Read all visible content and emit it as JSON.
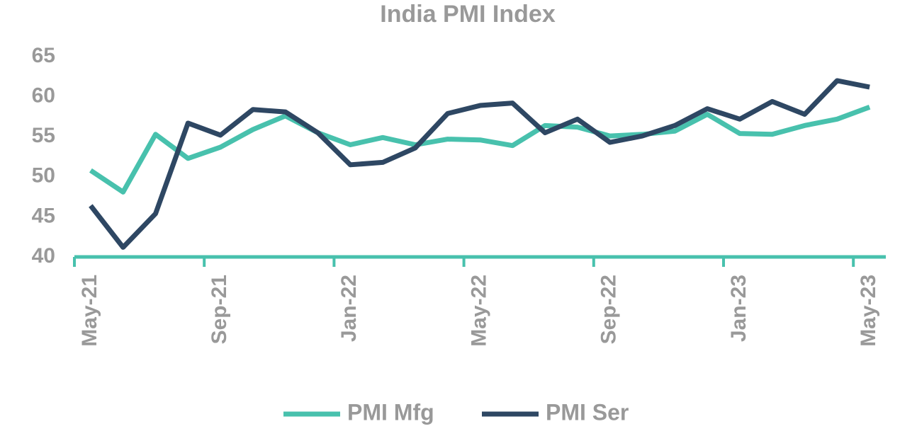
{
  "chart_data": {
    "type": "line",
    "title": "India PMI Index",
    "categories": [
      "May-21",
      null,
      null,
      null,
      "Sep-21",
      null,
      null,
      null,
      "Jan-22",
      null,
      null,
      null,
      "May-22",
      null,
      null,
      null,
      "Sep-22",
      null,
      null,
      null,
      "Jan-23",
      null,
      null,
      null,
      "May-23"
    ],
    "series": [
      {
        "name": "PMI Mfg",
        "color": "#48c1ad",
        "values": [
          50.8,
          48.1,
          55.3,
          52.3,
          53.7,
          55.9,
          57.6,
          55.5,
          54.0,
          54.9,
          54.0,
          54.7,
          54.6,
          53.9,
          56.4,
          56.2,
          55.1,
          55.3,
          55.7,
          57.8,
          55.4,
          55.3,
          56.4,
          57.2,
          58.7
        ]
      },
      {
        "name": "PMI Ser",
        "color": "#2e4763",
        "values": [
          46.4,
          41.2,
          45.4,
          56.7,
          55.2,
          58.4,
          58.1,
          55.5,
          51.5,
          51.8,
          53.6,
          57.9,
          58.9,
          59.2,
          55.5,
          57.2,
          54.3,
          55.1,
          56.4,
          58.5,
          57.2,
          59.4,
          57.8,
          62.0,
          61.2
        ]
      }
    ],
    "ylim": [
      40,
      65
    ],
    "yticks": [
      40,
      45,
      50,
      55,
      60,
      65
    ],
    "grid": false,
    "legend": "bottom"
  }
}
